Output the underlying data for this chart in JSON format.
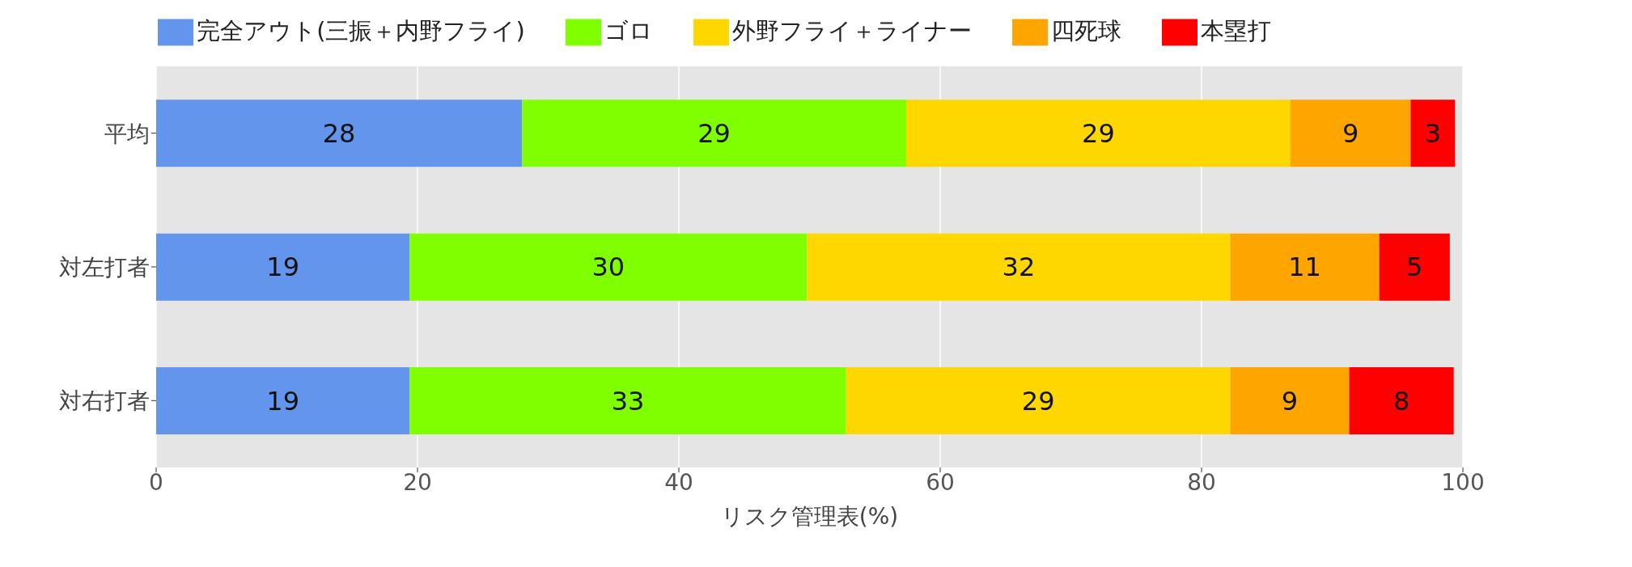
{
  "chart_data": {
    "type": "bar",
    "orientation": "horizontal",
    "stacked": true,
    "xlabel": "リスク管理表(%)",
    "categories": [
      "平均",
      "対左打者",
      "対右打者"
    ],
    "series": [
      {
        "name": "完全アウト(三振＋内野フライ)",
        "color": "#6495ed",
        "values": [
          28.0,
          19.4,
          19.4
        ],
        "value_labels": [
          "28",
          "19",
          "19"
        ]
      },
      {
        "name": "ゴロ",
        "color": "#7fff00",
        "values": [
          29.4,
          30.4,
          33.4
        ],
        "value_labels": [
          "29",
          "30",
          "33"
        ]
      },
      {
        "name": "外野フライ＋ライナー",
        "color": "#ffd700",
        "values": [
          29.4,
          32.4,
          29.4
        ],
        "value_labels": [
          "29",
          "32",
          "29"
        ]
      },
      {
        "name": "四死球",
        "color": "#ffa500",
        "values": [
          9.2,
          11.4,
          9.1
        ],
        "value_labels": [
          "9",
          "11",
          "9"
        ]
      },
      {
        "name": "本塁打",
        "color": "#ff0000",
        "values": [
          3.4,
          5.4,
          8.0
        ],
        "value_labels": [
          "3",
          "5",
          "8"
        ]
      }
    ],
    "xlim": [
      0,
      100
    ],
    "xticks": [
      0,
      20,
      40,
      60,
      80,
      100
    ],
    "grid": "x",
    "legend": "top"
  }
}
